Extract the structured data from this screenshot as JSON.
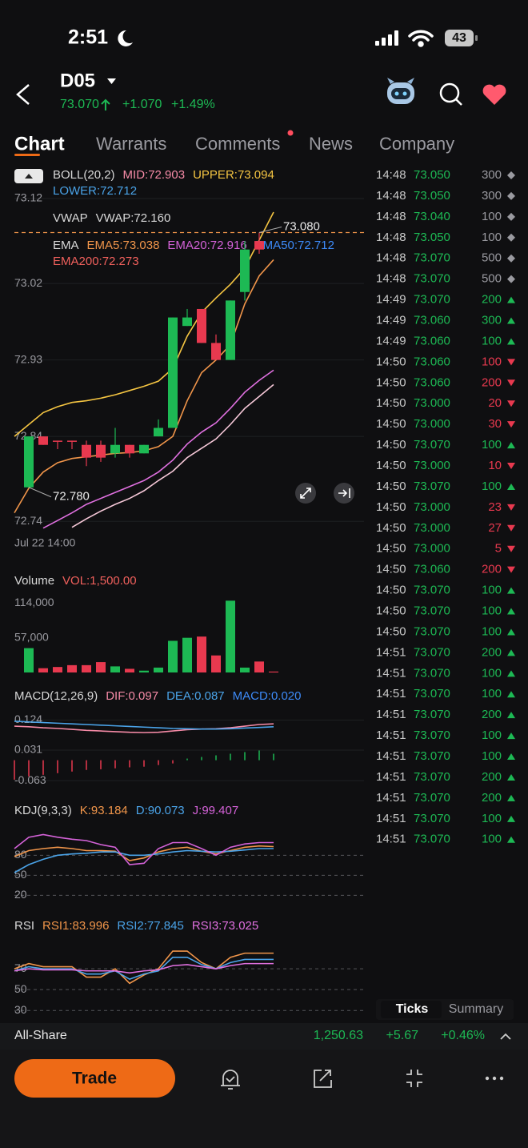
{
  "status_bar": {
    "time": "2:51",
    "battery": "43"
  },
  "header": {
    "symbol": "D05",
    "price": "73.070",
    "change": "+1.070",
    "change_pct": "+1.49%"
  },
  "tabs": [
    "Chart",
    "Warrants",
    "Comments",
    "News",
    "Company"
  ],
  "chart_data": [
    {
      "type": "candlestick",
      "legend": [
        [
          {
            "text": "BOLL(20,2)",
            "color": "#d8d8d8"
          },
          {
            "text": "MID:72.903",
            "color": "#f58aa6"
          },
          {
            "text": "UPPER:73.094",
            "color": "#f5c542"
          }
        ],
        [
          {
            "text": "LOWER:72.712",
            "color": "#4aa3e8"
          }
        ],
        [
          {
            "text": "VWAP",
            "color": "#d8d8d8"
          },
          {
            "text": "VWAP:72.160",
            "color": "#d8d8d8"
          }
        ],
        [
          {
            "text": "EMA",
            "color": "#d8d8d8"
          },
          {
            "text": "EMA5:73.038",
            "color": "#f0954a"
          },
          {
            "text": "EMA20:72.916",
            "color": "#d462d8"
          },
          {
            "text": "EMA50:72.712",
            "color": "#3d8af7"
          }
        ],
        [
          {
            "text": "EMA200:72.273",
            "color": "#f0605c"
          }
        ]
      ],
      "x_label": "Jul 22 14:00",
      "categories": [
        null,
        null,
        null,
        null,
        null,
        null,
        null,
        null,
        null,
        null,
        null,
        null,
        null,
        null,
        null,
        null,
        null,
        null,
        null
      ],
      "open": [
        null,
        72.78,
        72.84,
        72.835,
        72.835,
        72.83,
        72.83,
        72.82,
        72.83,
        72.82,
        72.84,
        72.85,
        72.97,
        72.99,
        72.95,
        72.93,
        73.01,
        73.07,
        null
      ],
      "close": [
        null,
        72.84,
        72.83,
        72.835,
        72.835,
        72.815,
        72.815,
        72.83,
        72.82,
        72.83,
        72.85,
        72.98,
        72.98,
        72.95,
        72.93,
        73.0,
        73.06,
        73.06,
        null
      ],
      "high": [
        null,
        72.84,
        72.84,
        72.835,
        72.835,
        72.835,
        72.835,
        72.85,
        72.83,
        72.83,
        72.86,
        72.98,
        72.99,
        72.99,
        72.96,
        73.0,
        73.07,
        73.08,
        null
      ],
      "low": [
        null,
        72.78,
        72.83,
        72.825,
        72.825,
        72.805,
        72.81,
        72.815,
        72.815,
        72.82,
        72.84,
        72.85,
        72.97,
        72.95,
        72.93,
        72.93,
        73.0,
        73.055,
        null
      ],
      "up_color": "#1db954",
      "down_color": "#e8394f",
      "series": [
        {
          "color": "#f5c542",
          "values": [
            72.84,
            72.854,
            72.868,
            72.875,
            72.88,
            72.882,
            72.885,
            72.889,
            72.894,
            72.899,
            72.905,
            72.92,
            72.958,
            72.986,
            73.003,
            73.019,
            73.038,
            73.071,
            73.104
          ]
        },
        {
          "color": "#f0954a",
          "values": [
            72.75,
            72.779,
            72.798,
            72.809,
            72.814,
            72.816,
            72.818,
            72.82,
            72.821,
            72.823,
            72.828,
            72.84,
            72.882,
            72.915,
            72.93,
            72.948,
            72.996,
            73.029,
            73.048
          ]
        },
        {
          "color": "#e070e0",
          "values": [
            null,
            null,
            72.732,
            72.741,
            72.75,
            72.76,
            72.767,
            72.774,
            72.781,
            72.788,
            72.798,
            72.812,
            72.831,
            72.845,
            72.856,
            72.873,
            72.892,
            72.906,
            72.918
          ]
        },
        {
          "color": "#f6c8d8",
          "values": [
            null,
            null,
            null,
            null,
            72.733,
            72.743,
            72.752,
            72.76,
            72.767,
            72.776,
            72.788,
            72.799,
            72.815,
            72.826,
            72.837,
            72.854,
            72.873,
            72.887,
            72.901
          ]
        }
      ],
      "annotations": [
        {
          "label": "73.080",
          "value": 73.08
        },
        {
          "label": "72.780",
          "value": 72.78
        }
      ],
      "ref_line": 73.08,
      "ref_color": "#f0954a",
      "ylim": [
        72.727,
        73.137
      ],
      "yticks": [
        73.12,
        73.02,
        72.93,
        72.84,
        72.74
      ],
      "grid": true
    },
    {
      "type": "bar",
      "legend": [
        [
          {
            "text": "Volume",
            "color": "#d8d8d8"
          },
          {
            "text": "VOL:1,500.00",
            "color": "#f0605c"
          }
        ]
      ],
      "categories": [
        null,
        null,
        null,
        null,
        null,
        null,
        null,
        null,
        null,
        null,
        null,
        null,
        null,
        null,
        null,
        null,
        null,
        null,
        null
      ],
      "values": [
        null,
        40000,
        7000,
        9000,
        12000,
        12000,
        17000,
        10000,
        6000,
        3000,
        8000,
        52000,
        57000,
        59000,
        28000,
        118000,
        8000,
        18000,
        1500
      ],
      "colors": [
        null,
        "#1db954",
        "#e8394f",
        "#e8394f",
        "#e8394f",
        "#e8394f",
        "#e8394f",
        "#1db954",
        "#e8394f",
        "#1db954",
        "#1db954",
        "#1db954",
        "#1db954",
        "#e8394f",
        "#e8394f",
        "#1db954",
        "#1db954",
        "#e8394f",
        "#e8394f"
      ],
      "ylim": [
        0,
        125000
      ],
      "yticks": [
        {
          "value": 114000,
          "label": "114,000"
        },
        {
          "value": 57000,
          "label": "57,000"
        }
      ],
      "grid": false
    },
    {
      "type": "line",
      "legend": [
        [
          {
            "text": "MACD(12,26,9)",
            "color": "#d8d8d8"
          },
          {
            "text": "DIF:0.097",
            "color": "#f58aa6"
          },
          {
            "text": "DEA:0.087",
            "color": "#4aa3e8"
          },
          {
            "text": "MACD:0.020",
            "color": "#3d8af7"
          }
        ]
      ],
      "categories": [
        null,
        null,
        null,
        null,
        null,
        null,
        null,
        null,
        null,
        null,
        null,
        null,
        null,
        null,
        null,
        null,
        null,
        null,
        null
      ],
      "series": [
        {
          "color": "#f58aa6",
          "values": [
            0.105,
            0.103,
            0.1,
            0.098,
            0.095,
            0.092,
            0.09,
            0.088,
            0.086,
            0.085,
            0.086,
            0.09,
            0.094,
            0.096,
            0.097,
            0.1,
            0.105,
            0.11,
            0.112
          ]
        },
        {
          "color": "#4aa3e8",
          "values": [
            0.12,
            0.118,
            0.116,
            0.114,
            0.112,
            0.11,
            0.108,
            0.106,
            0.104,
            0.102,
            0.1,
            0.098,
            0.097,
            0.096,
            0.096,
            0.097,
            0.099,
            0.101,
            0.103
          ]
        }
      ],
      "bars": [
        -0.06,
        -0.05,
        -0.045,
        -0.04,
        -0.035,
        -0.03,
        -0.028,
        -0.025,
        -0.022,
        -0.02,
        -0.015,
        -0.01,
        0.005,
        0.01,
        0.015,
        0.02,
        0.025,
        0.03,
        0.02
      ],
      "up_color": "#1db954",
      "down_color": "#e8394f",
      "ylim": [
        -0.075,
        0.147
      ],
      "yticks": [
        0.124,
        0.031,
        -0.063
      ],
      "grid": true
    },
    {
      "type": "line",
      "legend": [
        [
          {
            "text": "KDJ(9,3,3)",
            "color": "#d8d8d8"
          },
          {
            "text": "K:93.184",
            "color": "#f0954a"
          },
          {
            "text": "D:90.073",
            "color": "#4aa3e8"
          },
          {
            "text": "J:99.407",
            "color": "#d462d8"
          }
        ]
      ],
      "categories": [
        null,
        null,
        null,
        null,
        null,
        null,
        null,
        null,
        null,
        null,
        null,
        null,
        null,
        null,
        null,
        null,
        null,
        null,
        null
      ],
      "series": [
        {
          "color": "#f0954a",
          "values": [
            78,
            87,
            90,
            92,
            90,
            87,
            87,
            86,
            72,
            76,
            85,
            90,
            92,
            86,
            82,
            87,
            92,
            94,
            93
          ]
        },
        {
          "color": "#4aa3e8",
          "values": [
            54,
            66,
            74,
            80,
            82,
            83,
            85,
            85,
            80,
            80,
            82,
            85,
            87,
            86,
            85,
            86,
            88,
            90,
            90
          ]
        },
        {
          "color": "#d462d8",
          "values": [
            90,
            107,
            111,
            107,
            104,
            102,
            96,
            92,
            66,
            68,
            90,
            99,
            99,
            90,
            80,
            92,
            97,
            99,
            99
          ]
        }
      ],
      "ylim": [
        12,
        120
      ],
      "yticks": [
        80,
        50,
        20
      ],
      "grid": true,
      "grid_dashed": true
    },
    {
      "type": "line",
      "legend": [
        [
          {
            "text": "RSI",
            "color": "#d8d8d8"
          },
          {
            "text": "RSI1:83.996",
            "color": "#f0954a"
          },
          {
            "text": "RSI2:77.845",
            "color": "#4aa3e8"
          },
          {
            "text": "RSI3:73.025",
            "color": "#e070e0"
          }
        ]
      ],
      "categories": [
        null,
        null,
        null,
        null,
        null,
        null,
        null,
        null,
        null,
        null,
        null,
        null,
        null,
        null,
        null,
        null,
        null,
        null,
        null
      ],
      "series": [
        {
          "color": "#f0954a",
          "values": [
            70,
            75,
            72,
            72,
            72,
            62,
            62,
            70,
            56,
            64,
            70,
            87,
            87,
            76,
            70,
            81,
            85,
            85,
            85
          ]
        },
        {
          "color": "#4aa3e8",
          "values": [
            68,
            72,
            70,
            70,
            70,
            65,
            65,
            68,
            60,
            65,
            68,
            81,
            81,
            74,
            70,
            76,
            79,
            79,
            79
          ]
        },
        {
          "color": "#e070e0",
          "values": [
            68,
            70,
            69,
            69,
            69,
            68,
            68,
            68,
            66,
            68,
            69,
            73,
            74,
            72,
            70,
            73,
            75,
            75,
            75
          ]
        }
      ],
      "ylim": [
        24,
        97
      ],
      "yticks": [
        70,
        50,
        30
      ],
      "grid": true,
      "grid_dashed": true
    }
  ],
  "ticks_panel": {
    "tabs": [
      "Ticks",
      "Summary"
    ],
    "price_color": "#1db954",
    "icon_colors": {
      "diamond": "#9a9aa0",
      "up": "#1db954",
      "down": "#e8394f"
    },
    "rows": [
      {
        "time": "14:48",
        "price": "73.050",
        "qty": "300",
        "icon": "diamond"
      },
      {
        "time": "14:48",
        "price": "73.050",
        "qty": "300",
        "icon": "diamond"
      },
      {
        "time": "14:48",
        "price": "73.040",
        "qty": "100",
        "icon": "diamond"
      },
      {
        "time": "14:48",
        "price": "73.050",
        "qty": "100",
        "icon": "diamond"
      },
      {
        "time": "14:48",
        "price": "73.070",
        "qty": "500",
        "icon": "diamond"
      },
      {
        "time": "14:48",
        "price": "73.070",
        "qty": "500",
        "icon": "diamond"
      },
      {
        "time": "14:49",
        "price": "73.070",
        "qty": "200",
        "icon": "up"
      },
      {
        "time": "14:49",
        "price": "73.060",
        "qty": "300",
        "icon": "up"
      },
      {
        "time": "14:49",
        "price": "73.060",
        "qty": "100",
        "icon": "up"
      },
      {
        "time": "14:50",
        "price": "73.060",
        "qty": "100",
        "icon": "down"
      },
      {
        "time": "14:50",
        "price": "73.060",
        "qty": "200",
        "icon": "down"
      },
      {
        "time": "14:50",
        "price": "73.000",
        "qty": "20",
        "icon": "down"
      },
      {
        "time": "14:50",
        "price": "73.000",
        "qty": "30",
        "icon": "down"
      },
      {
        "time": "14:50",
        "price": "73.070",
        "qty": "100",
        "icon": "up"
      },
      {
        "time": "14:50",
        "price": "73.000",
        "qty": "10",
        "icon": "down"
      },
      {
        "time": "14:50",
        "price": "73.070",
        "qty": "100",
        "icon": "up"
      },
      {
        "time": "14:50",
        "price": "73.000",
        "qty": "23",
        "icon": "down"
      },
      {
        "time": "14:50",
        "price": "73.000",
        "qty": "27",
        "icon": "down"
      },
      {
        "time": "14:50",
        "price": "73.000",
        "qty": "5",
        "icon": "down"
      },
      {
        "time": "14:50",
        "price": "73.060",
        "qty": "200",
        "icon": "down"
      },
      {
        "time": "14:50",
        "price": "73.070",
        "qty": "100",
        "icon": "up"
      },
      {
        "time": "14:50",
        "price": "73.070",
        "qty": "100",
        "icon": "up"
      },
      {
        "time": "14:50",
        "price": "73.070",
        "qty": "100",
        "icon": "up"
      },
      {
        "time": "14:51",
        "price": "73.070",
        "qty": "200",
        "icon": "up"
      },
      {
        "time": "14:51",
        "price": "73.070",
        "qty": "100",
        "icon": "up"
      },
      {
        "time": "14:51",
        "price": "73.070",
        "qty": "100",
        "icon": "up"
      },
      {
        "time": "14:51",
        "price": "73.070",
        "qty": "200",
        "icon": "up"
      },
      {
        "time": "14:51",
        "price": "73.070",
        "qty": "100",
        "icon": "up"
      },
      {
        "time": "14:51",
        "price": "73.070",
        "qty": "100",
        "icon": "up"
      },
      {
        "time": "14:51",
        "price": "73.070",
        "qty": "200",
        "icon": "up"
      },
      {
        "time": "14:51",
        "price": "73.070",
        "qty": "200",
        "icon": "up"
      },
      {
        "time": "14:51",
        "price": "73.070",
        "qty": "100",
        "icon": "up"
      },
      {
        "time": "14:51",
        "price": "73.070",
        "qty": "100",
        "icon": "up"
      }
    ]
  },
  "index_bar": {
    "name": "All-Share",
    "value": "1,250.63",
    "change": "+5.67",
    "change_pct": "+0.46%"
  },
  "bottom_bar": {
    "trade": "Trade"
  }
}
